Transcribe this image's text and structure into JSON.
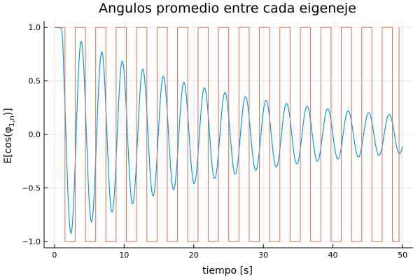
{
  "chart_data": {
    "type": "line",
    "title": "Angulos promedio entre cada eigeneje",
    "xlabel": "tiempo [s]",
    "ylabel_base": "E[cos(φ",
    "ylabel_sub": "1,n",
    "ylabel_end": ")]",
    "xlim": [
      0,
      50
    ],
    "ylim": [
      -1.0,
      1.0
    ],
    "xticks": [
      0,
      10,
      20,
      30,
      40,
      50
    ],
    "yticks": [
      -1.0,
      -0.5,
      0.0,
      0.5,
      1.0
    ],
    "xtick_labels": [
      "0",
      "10",
      "20",
      "30",
      "40",
      "50"
    ],
    "ytick_labels": [
      "−1.0",
      "−0.5",
      "0.0",
      "0.5",
      "1.0"
    ],
    "grid": true,
    "series": [
      {
        "color": "#009af9",
        "model": {
          "type": "damped_cosine",
          "initial_value": 1.0,
          "onset_time": 0.9,
          "period": 2.95,
          "envelope_start": 0.98,
          "decay_rate": 0.045,
          "envelope_floor": 0.08,
          "end_time": 50.0
        },
        "observed_peaks": [
          {
            "x": 3.8,
            "y": 0.91
          },
          {
            "x": 6.8,
            "y": 0.74
          },
          {
            "x": 9.7,
            "y": 0.62
          },
          {
            "x": 12.6,
            "y": 0.52
          },
          {
            "x": 15.5,
            "y": 0.42
          },
          {
            "x": 18.5,
            "y": 0.35
          },
          {
            "x": 21.4,
            "y": 0.26
          },
          {
            "x": 24.4,
            "y": 0.21
          },
          {
            "x": 27.3,
            "y": 0.16
          },
          {
            "x": 30.2,
            "y": 0.13
          },
          {
            "x": 33.2,
            "y": 0.1
          },
          {
            "x": 36.1,
            "y": 0.09
          },
          {
            "x": 39.0,
            "y": 0.09
          },
          {
            "x": 42.0,
            "y": 0.07
          },
          {
            "x": 45.0,
            "y": 0.08
          },
          {
            "x": 47.9,
            "y": 0.08
          }
        ],
        "observed_troughs": [
          {
            "x": 2.2,
            "y": -0.97
          },
          {
            "x": 5.2,
            "y": -0.82
          },
          {
            "x": 8.1,
            "y": -0.66
          },
          {
            "x": 11.0,
            "y": -0.55
          },
          {
            "x": 14.0,
            "y": -0.47
          },
          {
            "x": 16.9,
            "y": -0.37
          },
          {
            "x": 19.9,
            "y": -0.28
          },
          {
            "x": 22.8,
            "y": -0.22
          },
          {
            "x": 25.8,
            "y": -0.19
          },
          {
            "x": 28.7,
            "y": -0.14
          },
          {
            "x": 31.7,
            "y": -0.11
          },
          {
            "x": 34.6,
            "y": -0.09
          },
          {
            "x": 37.6,
            "y": -0.08
          },
          {
            "x": 40.6,
            "y": -0.08
          },
          {
            "x": 43.5,
            "y": -0.07
          },
          {
            "x": 46.5,
            "y": -0.07
          },
          {
            "x": 49.3,
            "y": -0.06
          }
        ],
        "end_value": 0.02
      },
      {
        "color": "#e26f46",
        "model": {
          "type": "square_wave",
          "high": 1.0,
          "low": -1.0,
          "first_fall": 1.5,
          "half_period": 1.47,
          "start_time": 0.0,
          "end_time": 49.5
        }
      }
    ]
  }
}
